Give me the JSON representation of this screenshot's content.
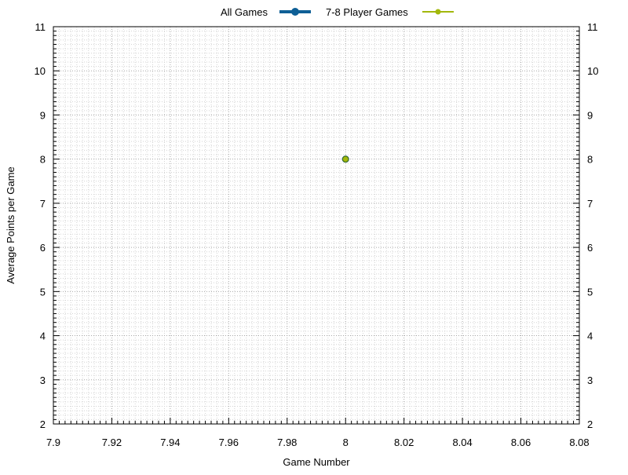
{
  "chart_data": {
    "type": "line",
    "title": "",
    "xlabel": "Game Number",
    "ylabel": "Average Points per Game",
    "xlim": [
      7.9,
      8.08
    ],
    "ylim": [
      2,
      11
    ],
    "x_ticks": [
      7.9,
      7.92,
      7.94,
      7.96,
      7.98,
      8,
      8.02,
      8.04,
      8.06,
      8.08
    ],
    "x_tick_labels": [
      "7.9",
      "7.92",
      "7.94",
      "7.96",
      "7.98",
      "8",
      "8.02",
      "8.04",
      "8.06",
      "8.08"
    ],
    "y_ticks": [
      2,
      3,
      4,
      5,
      6,
      7,
      8,
      9,
      10,
      11
    ],
    "y_tick_labels": [
      "2",
      "3",
      "4",
      "5",
      "6",
      "7",
      "8",
      "9",
      "10",
      "11"
    ],
    "grid": true,
    "legend_position": "top-center",
    "series": [
      {
        "name": "All Games",
        "color": "#0e5f96",
        "x": [
          8
        ],
        "y": [
          8
        ]
      },
      {
        "name": "7-8 Player Games",
        "color": "#a2b80c",
        "x": [
          8
        ],
        "y": [
          8
        ]
      }
    ]
  }
}
